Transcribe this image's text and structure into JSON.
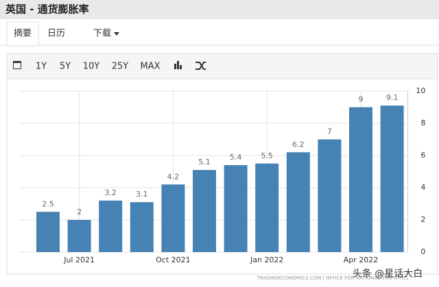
{
  "header": {
    "title": "英国 - 通货膨胀率"
  },
  "tabs": [
    "摘要",
    "日历",
    "下载"
  ],
  "toolbar": [
    "1Y",
    "5Y",
    "10Y",
    "25Y",
    "MAX"
  ],
  "chart_data": {
    "type": "bar",
    "categories": [
      null,
      "Jul 2021",
      null,
      null,
      "Oct 2021",
      null,
      null,
      "Jan 2022",
      null,
      null,
      "Apr 2022",
      null
    ],
    "values": [
      2.5,
      2,
      3.2,
      3.1,
      4.2,
      5.1,
      5.4,
      5.5,
      6.2,
      7,
      9,
      9.1
    ],
    "color": "#4682b4",
    "ylim": [
      0,
      10
    ],
    "yticks": [
      0,
      2,
      4,
      6,
      8,
      10
    ],
    "grid": true
  },
  "source": "TRADINGECONOMICS.COM | OFFICE FOR NATIONAL STATISTICS",
  "watermark": "头条 @星话大白"
}
